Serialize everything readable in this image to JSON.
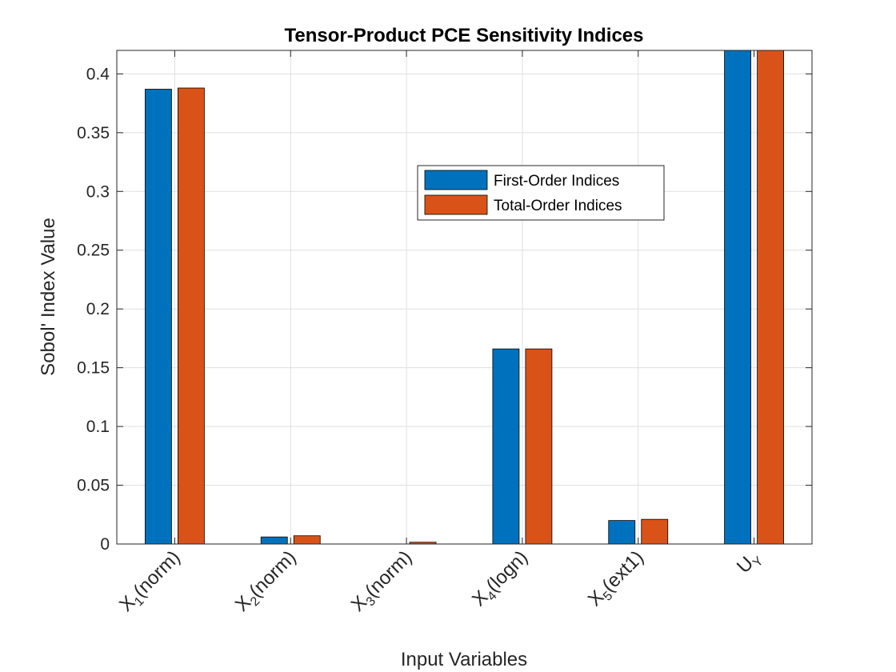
{
  "chart_data": {
    "type": "bar",
    "title": "Tensor-Product PCE Sensitivity Indices",
    "xlabel": "Input Variables",
    "ylabel": "Sobol' Index Value",
    "ylim": [
      0,
      0.42
    ],
    "yticks": [
      0,
      0.05,
      0.1,
      0.15,
      0.2,
      0.25,
      0.3,
      0.35,
      0.4
    ],
    "ytick_labels": [
      "0",
      "0.05",
      "0.1",
      "0.15",
      "0.2",
      "0.25",
      "0.3",
      "0.35",
      "0.4"
    ],
    "grid": true,
    "legend_position": "upper-center",
    "categories": [
      {
        "main": "X",
        "sub": "1",
        "suffix": "(norm)"
      },
      {
        "main": "X",
        "sub": "2",
        "suffix": "(norm)"
      },
      {
        "main": "X",
        "sub": "3",
        "suffix": "(norm)"
      },
      {
        "main": "X",
        "sub": "4",
        "suffix": "(logn)"
      },
      {
        "main": "X",
        "sub": "5",
        "suffix": "(ext1)"
      },
      {
        "main": "U",
        "sub": "Y",
        "suffix": ""
      }
    ],
    "series": [
      {
        "name": "First-Order Indices",
        "color": "#0072BD",
        "values": [
          0.387,
          0.006,
          0.0,
          0.166,
          0.02,
          0.42
        ]
      },
      {
        "name": "Total-Order Indices",
        "color": "#D95319",
        "values": [
          0.388,
          0.007,
          0.0015,
          0.166,
          0.021,
          0.42
        ]
      }
    ]
  }
}
